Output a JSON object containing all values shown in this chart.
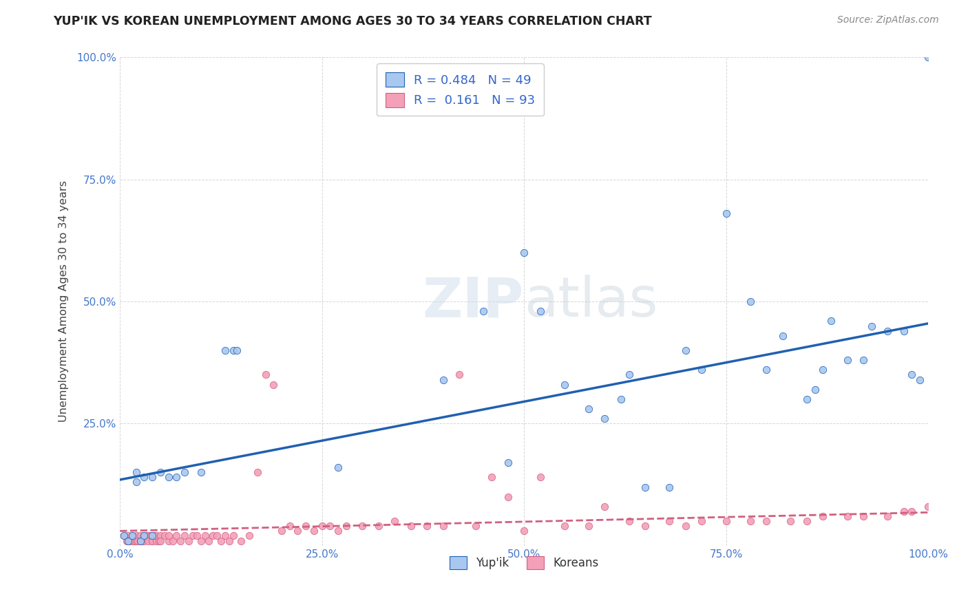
{
  "title": "YUP'IK VS KOREAN UNEMPLOYMENT AMONG AGES 30 TO 34 YEARS CORRELATION CHART",
  "source": "Source: ZipAtlas.com",
  "ylabel": "Unemployment Among Ages 30 to 34 years",
  "xlim": [
    0,
    1.0
  ],
  "ylim": [
    0,
    1.0
  ],
  "xtick_labels": [
    "0.0%",
    "25.0%",
    "50.0%",
    "75.0%",
    "100.0%"
  ],
  "xtick_vals": [
    0.0,
    0.25,
    0.5,
    0.75,
    1.0
  ],
  "ytick_labels": [
    "25.0%",
    "50.0%",
    "75.0%",
    "100.0%"
  ],
  "ytick_vals": [
    0.25,
    0.5,
    0.75,
    1.0
  ],
  "background_color": "#ffffff",
  "grid_color": "#cccccc",
  "color_yupik": "#a8c8f0",
  "color_korean": "#f4a0b8",
  "trendline_yupik": "#2060b0",
  "trendline_korean": "#d06080",
  "yupik_x": [
    0.005,
    0.01,
    0.015,
    0.02,
    0.02,
    0.025,
    0.03,
    0.03,
    0.04,
    0.04,
    0.05,
    0.06,
    0.07,
    0.08,
    0.1,
    0.13,
    0.14,
    0.145,
    0.45,
    0.5,
    0.52,
    0.55,
    0.58,
    0.6,
    0.62,
    0.63,
    0.65,
    0.68,
    0.7,
    0.72,
    0.75,
    0.78,
    0.8,
    0.82,
    0.85,
    0.86,
    0.87,
    0.88,
    0.9,
    0.92,
    0.93,
    0.95,
    0.97,
    0.98,
    0.99,
    1.0,
    0.27,
    0.4,
    0.48
  ],
  "yupik_y": [
    0.02,
    0.01,
    0.02,
    0.15,
    0.13,
    0.01,
    0.14,
    0.02,
    0.14,
    0.02,
    0.15,
    0.14,
    0.14,
    0.15,
    0.15,
    0.4,
    0.4,
    0.4,
    0.48,
    0.6,
    0.48,
    0.33,
    0.28,
    0.26,
    0.3,
    0.35,
    0.12,
    0.12,
    0.4,
    0.36,
    0.68,
    0.5,
    0.36,
    0.43,
    0.3,
    0.32,
    0.36,
    0.46,
    0.38,
    0.38,
    0.45,
    0.44,
    0.44,
    0.35,
    0.34,
    1.0,
    0.16,
    0.34,
    0.17
  ],
  "korean_x": [
    0.005,
    0.008,
    0.01,
    0.01,
    0.012,
    0.015,
    0.015,
    0.018,
    0.02,
    0.02,
    0.022,
    0.025,
    0.025,
    0.028,
    0.03,
    0.03,
    0.032,
    0.035,
    0.035,
    0.038,
    0.04,
    0.04,
    0.042,
    0.045,
    0.045,
    0.048,
    0.05,
    0.05,
    0.055,
    0.06,
    0.06,
    0.065,
    0.07,
    0.075,
    0.08,
    0.085,
    0.09,
    0.095,
    0.1,
    0.105,
    0.11,
    0.115,
    0.12,
    0.125,
    0.13,
    0.135,
    0.14,
    0.15,
    0.16,
    0.17,
    0.18,
    0.19,
    0.2,
    0.21,
    0.22,
    0.23,
    0.24,
    0.25,
    0.26,
    0.27,
    0.28,
    0.3,
    0.32,
    0.34,
    0.36,
    0.38,
    0.4,
    0.42,
    0.44,
    0.46,
    0.48,
    0.5,
    0.52,
    0.55,
    0.58,
    0.6,
    0.63,
    0.65,
    0.68,
    0.7,
    0.72,
    0.75,
    0.78,
    0.8,
    0.83,
    0.85,
    0.87,
    0.9,
    0.92,
    0.95,
    0.97,
    0.98,
    1.0
  ],
  "korean_y": [
    0.02,
    0.01,
    0.02,
    0.01,
    0.01,
    0.01,
    0.02,
    0.01,
    0.01,
    0.02,
    0.01,
    0.02,
    0.01,
    0.01,
    0.02,
    0.01,
    0.02,
    0.02,
    0.01,
    0.02,
    0.01,
    0.01,
    0.02,
    0.01,
    0.02,
    0.01,
    0.02,
    0.01,
    0.02,
    0.01,
    0.02,
    0.01,
    0.02,
    0.01,
    0.02,
    0.01,
    0.02,
    0.02,
    0.01,
    0.02,
    0.01,
    0.02,
    0.02,
    0.01,
    0.02,
    0.01,
    0.02,
    0.01,
    0.02,
    0.15,
    0.35,
    0.33,
    0.03,
    0.04,
    0.03,
    0.04,
    0.03,
    0.04,
    0.04,
    0.03,
    0.04,
    0.04,
    0.04,
    0.05,
    0.04,
    0.04,
    0.04,
    0.35,
    0.04,
    0.14,
    0.1,
    0.03,
    0.14,
    0.04,
    0.04,
    0.08,
    0.05,
    0.04,
    0.05,
    0.04,
    0.05,
    0.05,
    0.05,
    0.05,
    0.05,
    0.05,
    0.06,
    0.06,
    0.06,
    0.06,
    0.07,
    0.07,
    0.08
  ],
  "yupik_trendline_start_x": 0.0,
  "yupik_trendline_start_y": 0.135,
  "yupik_trendline_end_x": 1.0,
  "yupik_trendline_end_y": 0.455,
  "korean_trendline_start_x": 0.0,
  "korean_trendline_start_y": 0.03,
  "korean_trendline_end_x": 1.0,
  "korean_trendline_end_y": 0.068
}
